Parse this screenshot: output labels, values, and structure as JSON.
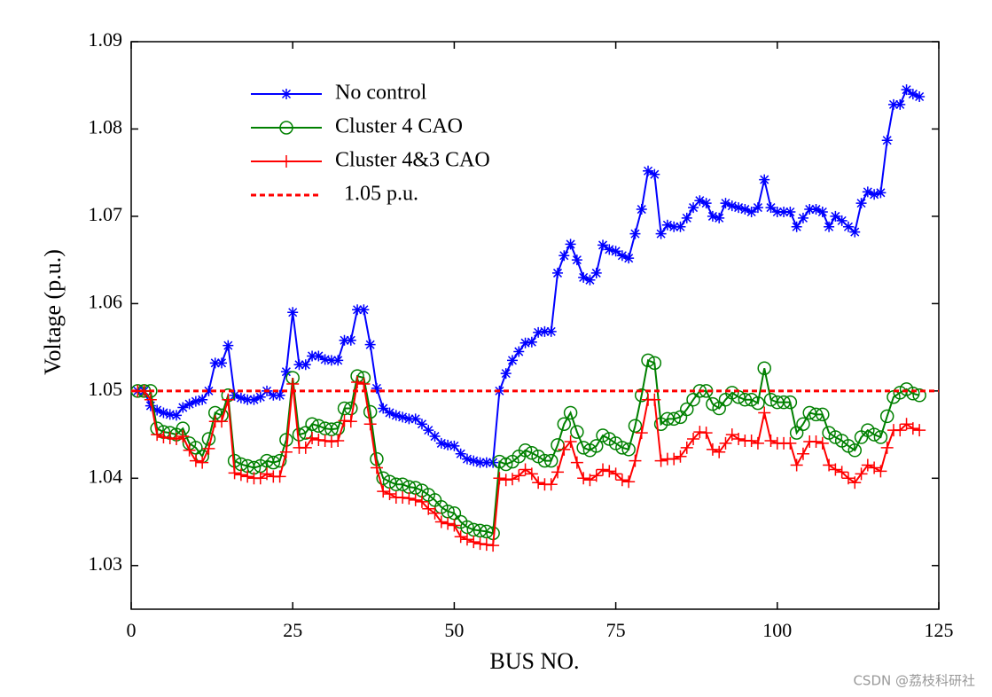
{
  "chart_data": {
    "type": "line",
    "x_label": "BUS NO.",
    "y_label": "Voltage (p.u.)",
    "xlim": [
      0,
      125
    ],
    "ylim": [
      1.025,
      1.09
    ],
    "xticks": [
      0,
      25,
      50,
      75,
      100,
      125
    ],
    "yticks": [
      1.03,
      1.04,
      1.05,
      1.06,
      1.07,
      1.08,
      1.09
    ],
    "legend": "upper left",
    "x": [
      1,
      2,
      3,
      4,
      5,
      6,
      7,
      8,
      9,
      10,
      11,
      12,
      13,
      14,
      15,
      16,
      17,
      18,
      19,
      20,
      21,
      22,
      23,
      24,
      25,
      26,
      27,
      28,
      29,
      30,
      31,
      32,
      33,
      34,
      35,
      36,
      37,
      38,
      39,
      40,
      41,
      42,
      43,
      44,
      45,
      46,
      47,
      48,
      49,
      50,
      51,
      52,
      53,
      54,
      55,
      56,
      57,
      58,
      59,
      60,
      61,
      62,
      63,
      64,
      65,
      66,
      67,
      68,
      69,
      70,
      71,
      72,
      73,
      74,
      75,
      76,
      77,
      78,
      79,
      80,
      81,
      82,
      83,
      84,
      85,
      86,
      87,
      88,
      89,
      90,
      91,
      92,
      93,
      94,
      95,
      96,
      97,
      98,
      99,
      100,
      101,
      102,
      103,
      104,
      105,
      106,
      107,
      108,
      109,
      110,
      111,
      112,
      113,
      114,
      115,
      116,
      117,
      118,
      119,
      120,
      121,
      122
    ],
    "series": [
      {
        "name": "No control",
        "color": "#0000ff",
        "marker": "asterisk",
        "values": [
          1.05,
          1.05,
          1.0483,
          1.0478,
          1.0475,
          1.0473,
          1.0472,
          1.0481,
          1.0485,
          1.0488,
          1.049,
          1.05,
          1.0532,
          1.0532,
          1.0552,
          1.0495,
          1.0492,
          1.049,
          1.049,
          1.0493,
          1.05,
          1.0495,
          1.0495,
          1.0522,
          1.059,
          1.053,
          1.053,
          1.054,
          1.054,
          1.0536,
          1.0535,
          1.0535,
          1.0558,
          1.0558,
          1.0593,
          1.0593,
          1.0553,
          1.0503,
          1.048,
          1.0475,
          1.0472,
          1.047,
          1.0468,
          1.0468,
          1.0462,
          1.0455,
          1.0448,
          1.044,
          1.0438,
          1.0437,
          1.0428,
          1.0422,
          1.042,
          1.0418,
          1.0418,
          1.0418,
          1.05,
          1.052,
          1.0535,
          1.0545,
          1.0555,
          1.0556,
          1.0567,
          1.0568,
          1.0568,
          1.0635,
          1.0655,
          1.0668,
          1.065,
          1.063,
          1.0627,
          1.0635,
          1.0667,
          1.0662,
          1.066,
          1.0655,
          1.0652,
          1.068,
          1.0708,
          1.0752,
          1.0748,
          1.068,
          1.069,
          1.0688,
          1.0688,
          1.0698,
          1.071,
          1.0718,
          1.0715,
          1.07,
          1.0698,
          1.0715,
          1.0712,
          1.071,
          1.0708,
          1.0705,
          1.071,
          1.0742,
          1.071,
          1.0705,
          1.0705,
          1.0705,
          1.0688,
          1.0698,
          1.0708,
          1.0708,
          1.0705,
          1.0688,
          1.07,
          1.0695,
          1.0688,
          1.0682,
          1.0715,
          1.0728,
          1.0725,
          1.0727,
          1.0787,
          1.0828,
          1.0828,
          1.0845,
          1.084,
          1.0837
        ]
      },
      {
        "name": "Cluster 4 CAO",
        "color": "#008000",
        "marker": "circle",
        "values": [
          1.05,
          1.05,
          1.05,
          1.0457,
          1.0453,
          1.0452,
          1.045,
          1.0457,
          1.044,
          1.0435,
          1.0425,
          1.0445,
          1.0475,
          1.0472,
          1.0495,
          1.042,
          1.0416,
          1.0414,
          1.0412,
          1.0414,
          1.042,
          1.0418,
          1.042,
          1.0444,
          1.0515,
          1.045,
          1.0452,
          1.0462,
          1.046,
          1.0457,
          1.0456,
          1.0457,
          1.048,
          1.048,
          1.0517,
          1.0515,
          1.0476,
          1.0422,
          1.04,
          1.0396,
          1.0393,
          1.0393,
          1.039,
          1.0389,
          1.0386,
          1.0381,
          1.0375,
          1.0367,
          1.0362,
          1.036,
          1.035,
          1.0344,
          1.0341,
          1.034,
          1.0339,
          1.0337,
          1.0419,
          1.0416,
          1.0419,
          1.0425,
          1.0432,
          1.0429,
          1.0425,
          1.042,
          1.042,
          1.0438,
          1.0462,
          1.0475,
          1.0453,
          1.0435,
          1.0432,
          1.0437,
          1.0449,
          1.0445,
          1.044,
          1.0435,
          1.0433,
          1.046,
          1.0495,
          1.0535,
          1.0532,
          1.0462,
          1.0468,
          1.0468,
          1.047,
          1.0479,
          1.049,
          1.05,
          1.05,
          1.0485,
          1.048,
          1.049,
          1.0498,
          1.0493,
          1.049,
          1.049,
          1.0486,
          1.0526,
          1.049,
          1.0487,
          1.0487,
          1.0487,
          1.0452,
          1.0462,
          1.0475,
          1.0473,
          1.0473,
          1.0452,
          1.0447,
          1.0443,
          1.0437,
          1.0432,
          1.0447,
          1.0455,
          1.045,
          1.0447,
          1.0471,
          1.0493,
          1.0498,
          1.0502,
          1.0497,
          1.0495
        ]
      },
      {
        "name": "Cluster 4&3 CAO",
        "color": "#ff0000",
        "marker": "plus",
        "values": [
          1.05,
          1.05,
          1.049,
          1.045,
          1.0447,
          1.0446,
          1.0445,
          1.0448,
          1.0432,
          1.042,
          1.0418,
          1.0434,
          1.0465,
          1.0465,
          1.049,
          1.0406,
          1.0404,
          1.0402,
          1.04,
          1.04,
          1.0405,
          1.0402,
          1.0402,
          1.043,
          1.0508,
          1.0435,
          1.0435,
          1.0446,
          1.0444,
          1.0443,
          1.0442,
          1.0443,
          1.0466,
          1.0465,
          1.051,
          1.0508,
          1.0462,
          1.0412,
          1.0385,
          1.0382,
          1.0378,
          1.0378,
          1.0377,
          1.0375,
          1.0373,
          1.0365,
          1.036,
          1.035,
          1.0348,
          1.0346,
          1.0333,
          1.033,
          1.0327,
          1.0325,
          1.0324,
          1.0323,
          1.04,
          1.0398,
          1.0399,
          1.0403,
          1.041,
          1.0405,
          1.0395,
          1.0393,
          1.0393,
          1.0407,
          1.0433,
          1.0442,
          1.0418,
          1.04,
          1.0398,
          1.0403,
          1.041,
          1.0408,
          1.0405,
          1.0398,
          1.0396,
          1.042,
          1.0452,
          1.049,
          1.049,
          1.042,
          1.0422,
          1.0422,
          1.0425,
          1.0435,
          1.0445,
          1.0453,
          1.0452,
          1.0433,
          1.043,
          1.044,
          1.045,
          1.0445,
          1.0443,
          1.0443,
          1.044,
          1.0475,
          1.0443,
          1.044,
          1.044,
          1.044,
          1.0415,
          1.0428,
          1.0442,
          1.0442,
          1.044,
          1.0415,
          1.041,
          1.0407,
          1.04,
          1.0395,
          1.0405,
          1.0415,
          1.0412,
          1.0408,
          1.0435,
          1.0455,
          1.0455,
          1.0462,
          1.0457,
          1.0455
        ]
      }
    ],
    "reference_lines": [
      {
        "name": "1.05 p.u.",
        "value": 1.05,
        "color": "#ff0000"
      }
    ]
  },
  "watermark": "CSDN @荔枝科研社"
}
